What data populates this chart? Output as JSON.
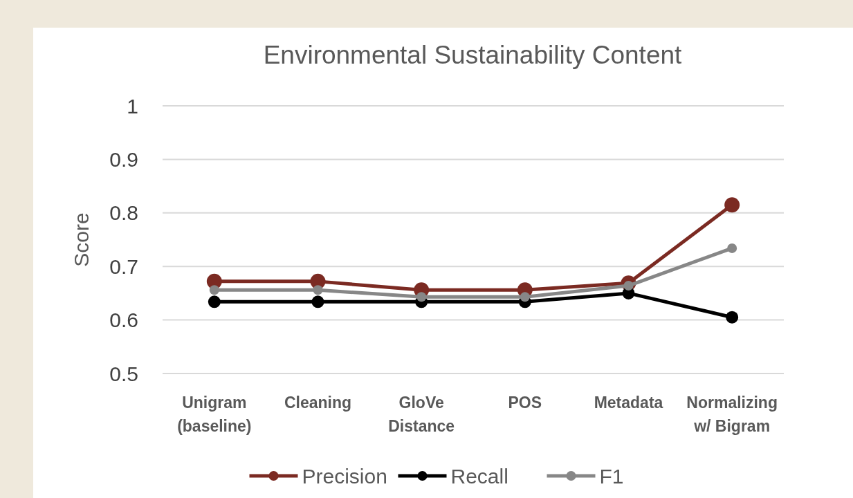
{
  "chart_data": {
    "type": "line",
    "title": "Environmental Sustainability Content",
    "ylabel": "Score",
    "categories": [
      "Unigram\n(baseline)",
      "Cleaning",
      "GloVe\nDistance",
      "POS",
      "Metadata",
      "Normalizing\nw/ Bigram"
    ],
    "series": [
      {
        "name": "Precision",
        "color": "#7b2a22",
        "values": [
          0.672,
          0.672,
          0.656,
          0.656,
          0.669,
          0.815
        ]
      },
      {
        "name": "Recall",
        "color": "#000000",
        "values": [
          0.634,
          0.634,
          0.634,
          0.634,
          0.65,
          0.605
        ]
      },
      {
        "name": "F1",
        "color": "#878787",
        "values": [
          0.656,
          0.656,
          0.643,
          0.643,
          0.664,
          0.734
        ]
      }
    ],
    "ylim": [
      0.5,
      1
    ],
    "yticks": [
      0.5,
      0.6,
      0.7,
      0.8,
      0.9,
      1
    ],
    "grid": "y",
    "legend": "bottom",
    "marker": "circle",
    "line_style": "solid"
  }
}
